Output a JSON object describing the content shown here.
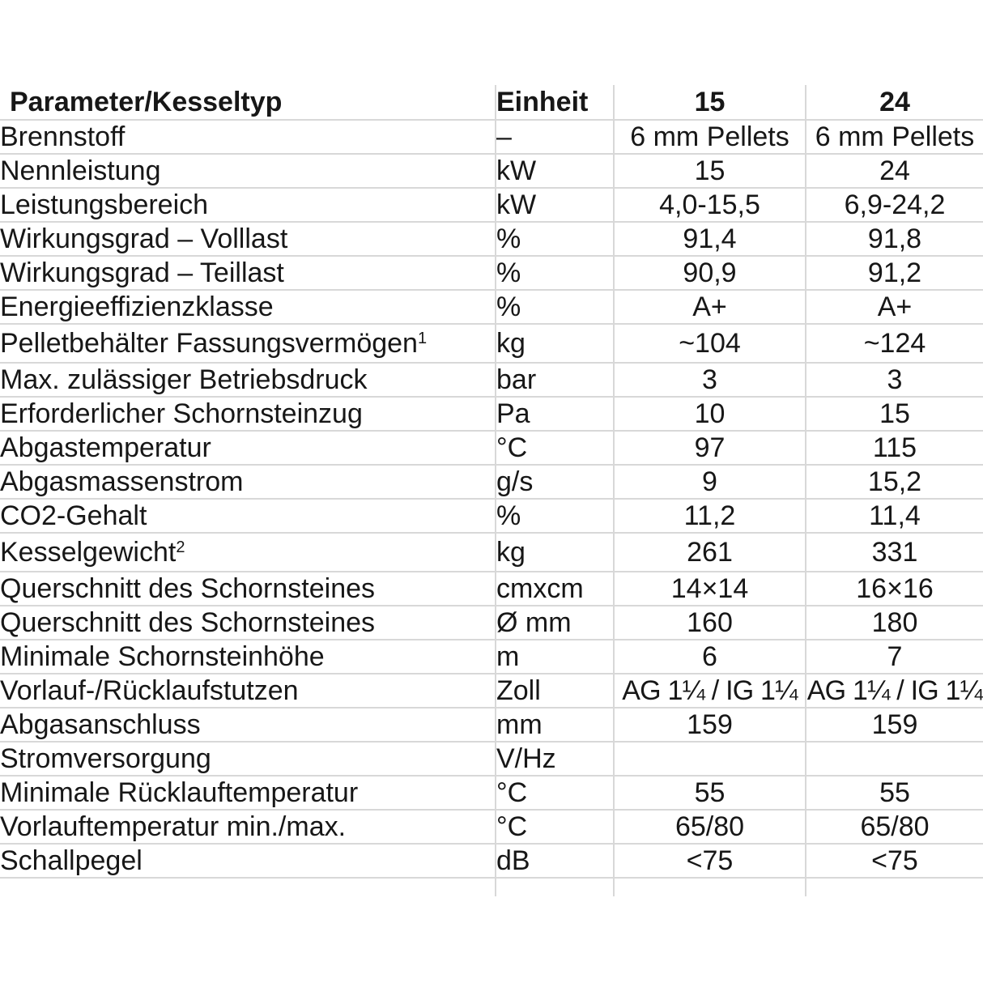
{
  "page": {
    "background_color": "#ffffff",
    "grid_color": "#d8d8d8",
    "text_color": "#171717"
  },
  "table": {
    "header": {
      "param": "Parameter/Kesseltyp",
      "unit": "Einheit",
      "col15": "15",
      "col24": "24"
    },
    "rows": [
      {
        "param": "Brennstoff",
        "unit": "–",
        "v15": "6 mm Pellets",
        "v24": "6 mm Pellets"
      },
      {
        "param": "Nennleistung",
        "unit": "kW",
        "v15": "15",
        "v24": "24"
      },
      {
        "param": "Leistungsbereich",
        "unit": "kW",
        "v15": "4,0-15,5",
        "v24": "6,9-24,2"
      },
      {
        "param": "Wirkungsgrad – Volllast",
        "unit": "%",
        "v15": "91,4",
        "v24": "91,8"
      },
      {
        "param": "Wirkungsgrad – Teillast",
        "unit": "%",
        "v15": "90,9",
        "v24": "91,2"
      },
      {
        "param": "Energieeffizienzklasse",
        "unit": "%",
        "v15": "A+",
        "v24": "A+"
      },
      {
        "param": "Pelletbehälter Fassungsvermögen",
        "sup": "1",
        "tall": true,
        "unit": "kg",
        "v15": "~104",
        "v24": "~124"
      },
      {
        "param": "Max. zulässiger Betriebsdruck",
        "unit": "bar",
        "v15": "3",
        "v24": "3"
      },
      {
        "param": "Erforderlicher Schornsteinzug",
        "unit": "Pa",
        "v15": "10",
        "v24": "15"
      },
      {
        "param": "Abgastemperatur",
        "unit": "°C",
        "v15": "97",
        "v24": "115"
      },
      {
        "param": "Abgasmassenstrom",
        "unit": "g/s",
        "v15": "9",
        "v24": "15,2"
      },
      {
        "param": "CO2-Gehalt",
        "unit": "%",
        "v15": "11,2",
        "v24": "11,4"
      },
      {
        "param": "Kesselgewicht",
        "sup": "2",
        "tall": true,
        "unit": "kg",
        "v15": "261",
        "v24": "331"
      },
      {
        "param": "Querschnitt des Schornsteines",
        "unit": "cmxcm",
        "v15": "14×14",
        "v24": "16×16"
      },
      {
        "param": "Querschnitt des Schornsteines",
        "unit": "Ø mm",
        "v15": "160",
        "v24": "180"
      },
      {
        "param": "Minimale Schornsteinhöhe",
        "unit": "m",
        "v15": "6",
        "v24": "7"
      },
      {
        "param": "Vorlauf-/Rücklaufstutzen",
        "unit": "Zoll",
        "v15": "AG 1¼ / IG 1¼",
        "v24": "AG 1¼ / IG 1¼",
        "tight": true
      },
      {
        "param": "Abgasanschluss",
        "unit": "mm",
        "v15": "159",
        "v24": "159"
      },
      {
        "param": "Stromversorgung",
        "unit": "V/Hz",
        "v15": "",
        "v24": ""
      },
      {
        "param": "Minimale Rücklauftemperatur",
        "unit": "°C",
        "v15": "55",
        "v24": "55"
      },
      {
        "param": "Vorlauftemperatur min./max.",
        "unit": "°C",
        "v15": "65/80",
        "v24": "65/80"
      },
      {
        "param": "Schallpegel",
        "unit": "dB",
        "v15": "<75",
        "v24": "<75"
      }
    ]
  }
}
